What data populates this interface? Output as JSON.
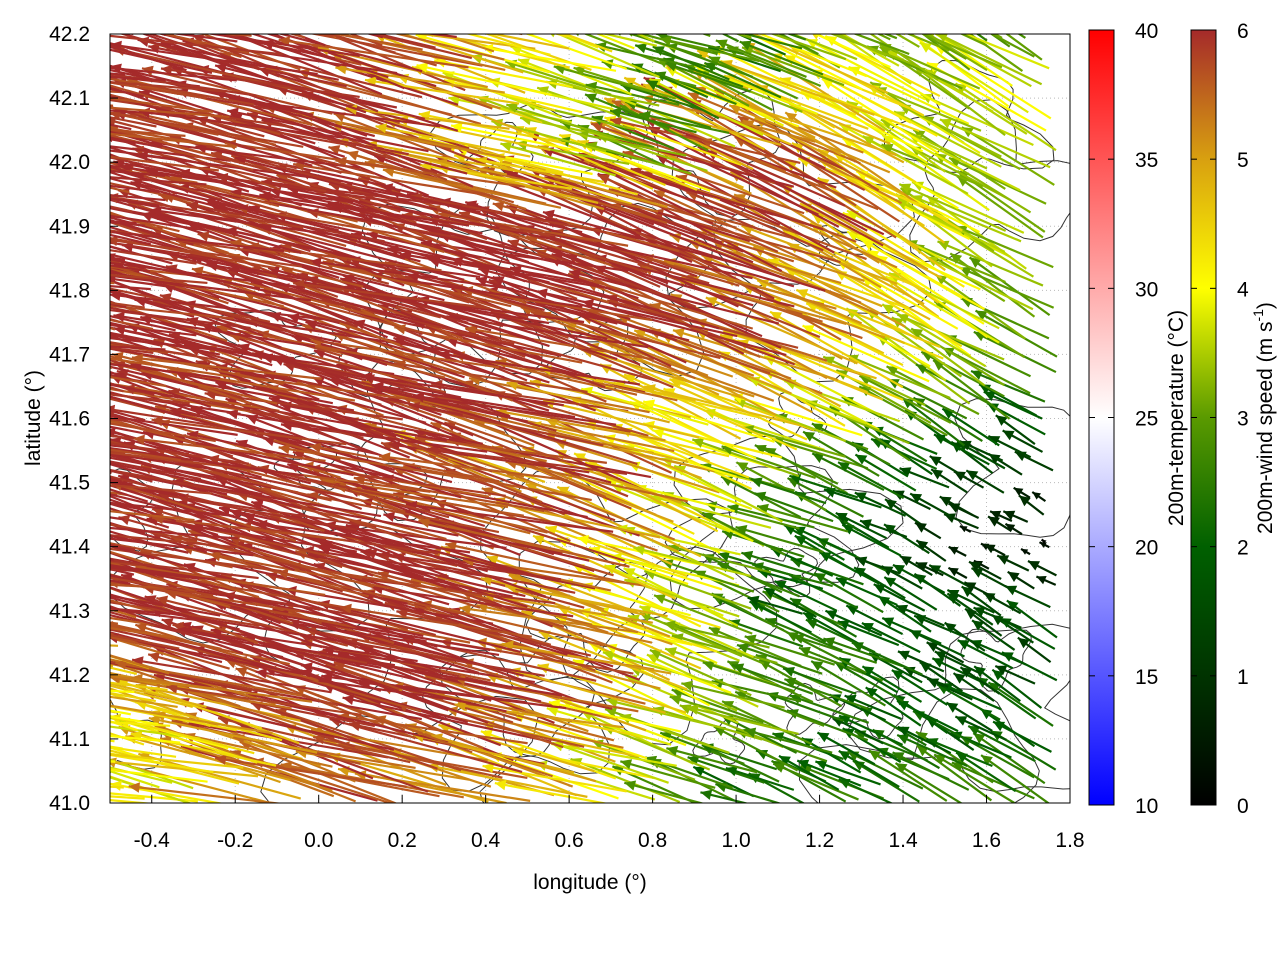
{
  "chart_data": {
    "type": "vector-field",
    "xlabel": "longitude (°)",
    "ylabel": "latitude (°)",
    "xlim": [
      -0.5,
      1.8
    ],
    "ylim": [
      41.0,
      42.2
    ],
    "xticks": [
      "-0.4",
      "-0.2",
      "0.0",
      "0.2",
      "0.4",
      "0.6",
      "0.8",
      "1.0",
      "1.2",
      "1.4",
      "1.6",
      "1.8"
    ],
    "xtick_values": [
      -0.4,
      -0.2,
      0,
      0.2,
      0.4,
      0.6,
      0.8,
      1.0,
      1.2,
      1.4,
      1.6,
      1.8
    ],
    "yticks": [
      "41.0",
      "41.1",
      "41.2",
      "41.3",
      "41.4",
      "41.5",
      "41.6",
      "41.7",
      "41.8",
      "41.9",
      "42.0",
      "42.1",
      "42.2"
    ],
    "ytick_values": [
      41.0,
      41.1,
      41.2,
      41.3,
      41.4,
      41.5,
      41.6,
      41.7,
      41.8,
      41.9,
      42.0,
      42.1,
      42.2
    ],
    "grid": true,
    "colorbars": [
      {
        "label": "200m-temperature (°C)",
        "range": [
          10,
          40
        ],
        "ticks": [
          "10",
          "15",
          "20",
          "25",
          "30",
          "35",
          "40"
        ],
        "palette": [
          "#0000ff",
          "#ffffff",
          "#ff0000"
        ]
      },
      {
        "label": "200m-wind speed (m s",
        "label_sup": "-1",
        "label_end": ")",
        "range": [
          0,
          6
        ],
        "ticks": [
          "0",
          "1",
          "2",
          "3",
          "4",
          "5",
          "6"
        ],
        "palette": [
          "#000000",
          "#003300",
          "#006000",
          "#5a9a00",
          "#ffff00",
          "#d8a010",
          "#a52a2a"
        ]
      }
    ],
    "wind_grid": {
      "lon": [
        -0.45,
        -0.25,
        -0.05,
        0.15,
        0.35,
        0.55,
        0.75,
        0.95,
        1.15,
        1.35,
        1.55,
        1.75
      ],
      "lat": [
        42.2,
        42.1,
        42.0,
        41.9,
        41.8,
        41.7,
        41.6,
        41.5,
        41.4,
        41.3,
        41.2,
        41.1,
        41.0
      ],
      "speed": [
        [
          6,
          6,
          6,
          6,
          6,
          5,
          4,
          3,
          2.5,
          2.5,
          2.5,
          3
        ],
        [
          6,
          6,
          6,
          6,
          6,
          4,
          3.5,
          2.5,
          2.5,
          5,
          3.5,
          4
        ],
        [
          6,
          6,
          6,
          6,
          6,
          4.5,
          3,
          3,
          6,
          5,
          3.5,
          3.5
        ],
        [
          6,
          6,
          6,
          6,
          6,
          6,
          6,
          6,
          6,
          6,
          4,
          3
        ],
        [
          6,
          6,
          6,
          6,
          6,
          6,
          6,
          6,
          6,
          5,
          4,
          3
        ],
        [
          6,
          6,
          6,
          6,
          6,
          6,
          6,
          6,
          6,
          5,
          4,
          3
        ],
        [
          6,
          6,
          6,
          6,
          6,
          6,
          6,
          4,
          5,
          4,
          3,
          2
        ],
        [
          6,
          6,
          6,
          6,
          6,
          5,
          6,
          5,
          3,
          2,
          1.5,
          1
        ],
        [
          6,
          6,
          6,
          6,
          6,
          6,
          6,
          4,
          3,
          2,
          0.5,
          0.3
        ],
        [
          6,
          6,
          6,
          6,
          6,
          6,
          5,
          4,
          2,
          2,
          1.5,
          1.5
        ],
        [
          4.5,
          6,
          6,
          6,
          6,
          6,
          6,
          4,
          3,
          2.5,
          1.5,
          1.5
        ],
        [
          4,
          4,
          5,
          6,
          6,
          6,
          5,
          3.5,
          3,
          2,
          2,
          2
        ],
        [
          4,
          4,
          5,
          6,
          5,
          5,
          4,
          2.5,
          2,
          2.5,
          2.5,
          2.5
        ]
      ],
      "direction_deg": [
        170,
        168,
        166,
        165,
        165,
        165,
        165,
        160,
        160,
        155,
        150,
        150
      ]
    }
  }
}
